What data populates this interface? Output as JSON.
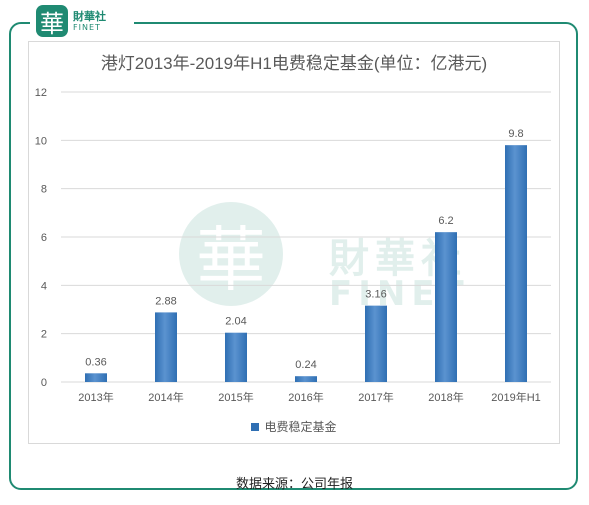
{
  "brand": {
    "logo_char": "華",
    "name_cn": "財華社",
    "name_en": "FINET"
  },
  "source": "数据来源：公司年报",
  "chart_data": {
    "type": "bar",
    "title": "港灯2013年-2019年H1电费稳定基金(单位：亿港元)",
    "categories": [
      "2013年",
      "2014年",
      "2015年",
      "2016年",
      "2017年",
      "2018年",
      "2019年H1"
    ],
    "series": [
      {
        "name": "电费稳定基金",
        "values": [
          0.36,
          2.88,
          2.04,
          0.24,
          3.16,
          6.2,
          9.8
        ],
        "labels": [
          "0.36",
          "2.88",
          "2.04",
          "0.24",
          "3.16",
          "6.2",
          "9.8"
        ]
      }
    ],
    "y_ticks": [
      "0",
      "2",
      "4",
      "6",
      "8",
      "10",
      "12"
    ],
    "ylim": [
      0,
      12
    ],
    "grid": true,
    "legend_position": "bottom",
    "colors": {
      "bar": "#2f6fb3",
      "bar_highlight": "#5b93d0",
      "grid": "#d9d9d9",
      "text": "#595959"
    }
  }
}
